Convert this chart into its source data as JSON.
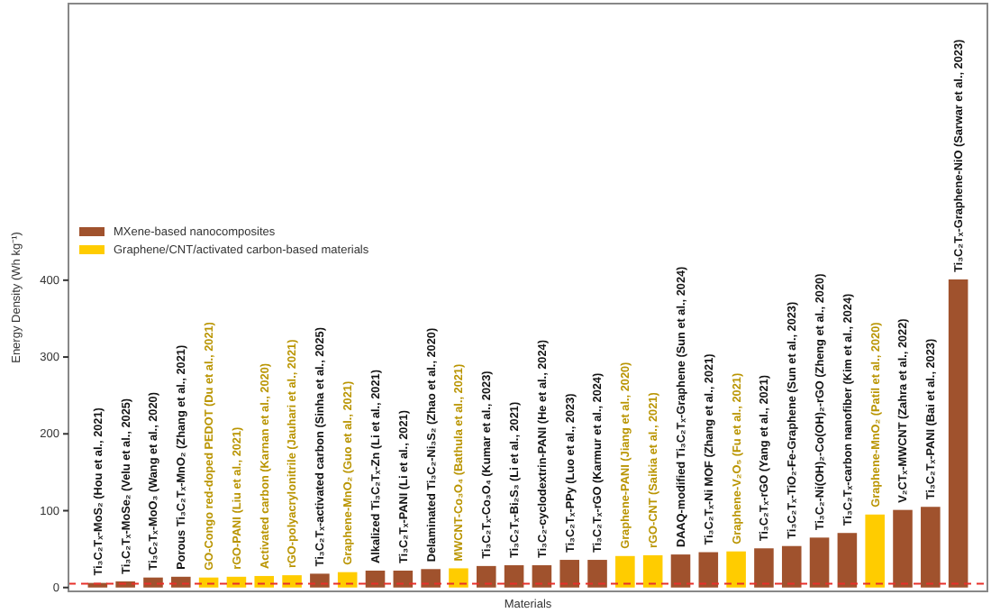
{
  "chart_data": {
    "type": "bar",
    "xlabel": "Materials",
    "ylabel": "Energy Density (Wh kg⁻¹)",
    "categories": [
      "Ti₃C₂Tₓ-MoS₂ (Hou et al., 2021)",
      "Ti₃C₂Tₓ-MoSe₂ (Velu et al., 2025)",
      "Ti₃C₂Tₓ-MoO₃ (Wang et al., 2020)",
      "Porous Ti₃C₂Tₓ-MnO₂ (Zhang et al., 2021)",
      "GO-Congo red-doped PEDOT (Du et al., 2021)",
      "rGO-PANI (Liu et al., 2021)",
      "Activated carbon (Karnan et al., 2020)",
      "rGO-polyacrylonitrile (Jauhari et al., 2021)",
      "Ti₃C₂Tₓ-activated carbon (Sinha et al., 2025)",
      "Graphene-MnO₂ (Guo et al., 2021)",
      "Alkalized Ti₃C₂Tₓ-Zn (Li et al., 2021)",
      "Ti₃C₂Tₓ-PANI (Li et al., 2021)",
      "Delaminated Ti₃C₂-Ni₃S₂ (Zhao et al., 2020)",
      "MWCNT-Co₃O₄ (Bathula et al., 2021)",
      "Ti₃C₂Tₓ-Co₃O₄ (Kumar et al., 2023)",
      "Ti₃C₂Tₓ-Bi₂S₃ (Li et al., 2021)",
      "Ti₃C₂-cyclodextrin-PANI (He et al., 2024)",
      "Ti₃C₂Tₓ-PPy (Luo et al., 2023)",
      "Ti₃C₂Tₓ-rGO (Karmur et al., 2024)",
      "Graphene-PANI (Jiang et al., 2020)",
      "rGO-CNT (Saikia et al., 2021)",
      "DAAQ-modified Ti₃C₂Tₓ-Graphene (Sun et al., 2024)",
      "Ti₃C₂Tₓ-Ni MOF (Zhang et al., 2021)",
      "Graphene-V₂O₅ (Fu et al., 2021)",
      "Ti₃C₂Tₓ-rGO (Yang et al., 2021)",
      "Ti₃C₂Tₓ-TiO₂-Fe-Graphene (Sun et al., 2023)",
      "Ti₃C₂-Ni(OH)₂-Co(OH)₂-rGO (Zheng et al., 2020)",
      "Ti₃C₂Tₓ-carbon nanofiber (Kim et al., 2024)",
      "Graphene-MnO₂ (Patil et al., 2020)",
      "V₂CTₓ-MWCNT (Zahra et al., 2022)",
      "Ti₃C₂Tₓ-PANI (Bai et al., 2023)",
      "Ti₃C₂Tₓ-Graphene-NiO (Sarwar et al., 2023)"
    ],
    "series": [
      {
        "name": "MXene-based nanocomposites",
        "color": "#a0522d",
        "values": [
          6,
          8,
          13,
          14,
          null,
          null,
          null,
          null,
          18,
          null,
          22,
          22,
          24,
          null,
          28,
          29,
          29,
          36,
          36,
          null,
          null,
          43,
          46,
          null,
          51,
          54,
          65,
          71,
          null,
          101,
          105,
          401
        ]
      },
      {
        "name": "Graphene/CNT/activated carbon-based materials",
        "color": "#ffcc00",
        "values": [
          null,
          null,
          null,
          null,
          13,
          14,
          15,
          16,
          null,
          20,
          null,
          null,
          null,
          25,
          null,
          null,
          null,
          null,
          null,
          41,
          42,
          null,
          null,
          47,
          null,
          null,
          null,
          null,
          95,
          null,
          null,
          null
        ]
      }
    ],
    "ylim": [
      -5,
      760
    ],
    "yticks": [
      0,
      100,
      200,
      300,
      400
    ],
    "ref_lines": [
      {
        "axis": "y",
        "value": 5,
        "color": "#e8302a",
        "line_style": "dashed"
      }
    ],
    "legend": "top left",
    "grid": false
  }
}
